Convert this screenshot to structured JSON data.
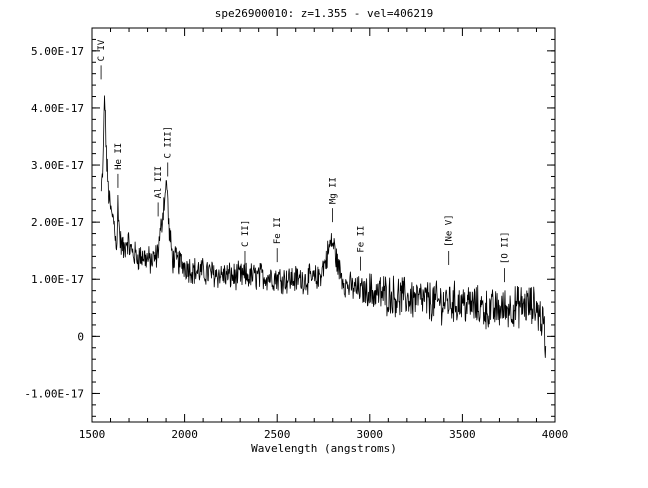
{
  "chart_data": {
    "type": "line",
    "title": "spe26900010: z=1.355 - vel=406219",
    "xlabel": "Wavelength (angstroms)",
    "ylabel": "",
    "xlim": [
      1500,
      4000
    ],
    "ylim": [
      -1.5e-17,
      5.4e-17
    ],
    "grid": false,
    "x_ticks": [
      1500,
      2000,
      2500,
      3000,
      3500,
      4000
    ],
    "x_tick_labels": [
      "1500",
      "2000",
      "2500",
      "3000",
      "3500",
      "4000"
    ],
    "y_ticks": [
      -1e-17,
      0,
      1e-17,
      2e-17,
      3e-17,
      4e-17,
      5e-17
    ],
    "y_tick_labels": [
      "-1.00E-17",
      "0",
      "1.00E-17",
      "2.00E-17",
      "3.00E-17",
      "4.00E-17",
      "5.00E-17"
    ],
    "spectrum_key_points": [
      [
        1550,
        2.5e-17
      ],
      [
        1560,
        3e-17
      ],
      [
        1568,
        4.3e-17
      ],
      [
        1572,
        3.8e-17
      ],
      [
        1580,
        3e-17
      ],
      [
        1590,
        2.5e-17
      ],
      [
        1600,
        2.2e-17
      ],
      [
        1620,
        2e-17
      ],
      [
        1635,
        1.5e-17
      ],
      [
        1640,
        2.4e-17
      ],
      [
        1650,
        1.7e-17
      ],
      [
        1670,
        1.5e-17
      ],
      [
        1690,
        1.7e-17
      ],
      [
        1710,
        1.5e-17
      ],
      [
        1740,
        1.4e-17
      ],
      [
        1780,
        1.4e-17
      ],
      [
        1820,
        1.3e-17
      ],
      [
        1850,
        1.4e-17
      ],
      [
        1870,
        1.8e-17
      ],
      [
        1890,
        2.4e-17
      ],
      [
        1905,
        2.7e-17
      ],
      [
        1915,
        1.9e-17
      ],
      [
        1935,
        1.35e-17
      ],
      [
        1970,
        1.3e-17
      ],
      [
        2050,
        1.15e-17
      ],
      [
        2150,
        1.1e-17
      ],
      [
        2250,
        1.05e-17
      ],
      [
        2350,
        1.05e-17
      ],
      [
        2450,
        1.05e-17
      ],
      [
        2550,
        1e-17
      ],
      [
        2650,
        1e-17
      ],
      [
        2720,
        1e-17
      ],
      [
        2760,
        1.3e-17
      ],
      [
        2790,
        1.65e-17
      ],
      [
        2805,
        1.6e-17
      ],
      [
        2830,
        1.2e-17
      ],
      [
        2870,
        9e-18
      ],
      [
        2950,
        8e-18
      ],
      [
        3050,
        7.5e-18
      ],
      [
        3150,
        7e-18
      ],
      [
        3250,
        6.5e-18
      ],
      [
        3350,
        6e-18
      ],
      [
        3450,
        6e-18
      ],
      [
        3550,
        5.5e-18
      ],
      [
        3650,
        4.5e-18
      ],
      [
        3750,
        5e-18
      ],
      [
        3850,
        5.5e-18
      ],
      [
        3900,
        5e-18
      ],
      [
        3940,
        2e-18
      ],
      [
        3950,
        -3e-18
      ]
    ],
    "line_labels": [
      {
        "label": "C IV",
        "x": 1549,
        "y": 4.5e-17
      },
      {
        "label": "He II",
        "x": 1640,
        "y": 2.6e-17
      },
      {
        "label": "Al III",
        "x": 1857,
        "y": 2.1e-17
      },
      {
        "label": "C III]",
        "x": 1909,
        "y": 2.8e-17
      },
      {
        "label": "C II]",
        "x": 2326,
        "y": 1.25e-17
      },
      {
        "label": "Fe II",
        "x": 2500,
        "y": 1.3e-17
      },
      {
        "label": "Mg II",
        "x": 2798,
        "y": 2e-17
      },
      {
        "label": "Fe II",
        "x": 2950,
        "y": 1.15e-17
      },
      {
        "label": "[Ne V]",
        "x": 3426,
        "y": 1.25e-17
      },
      {
        "label": "[O II]",
        "x": 3727,
        "y": 9.5e-18
      }
    ]
  }
}
